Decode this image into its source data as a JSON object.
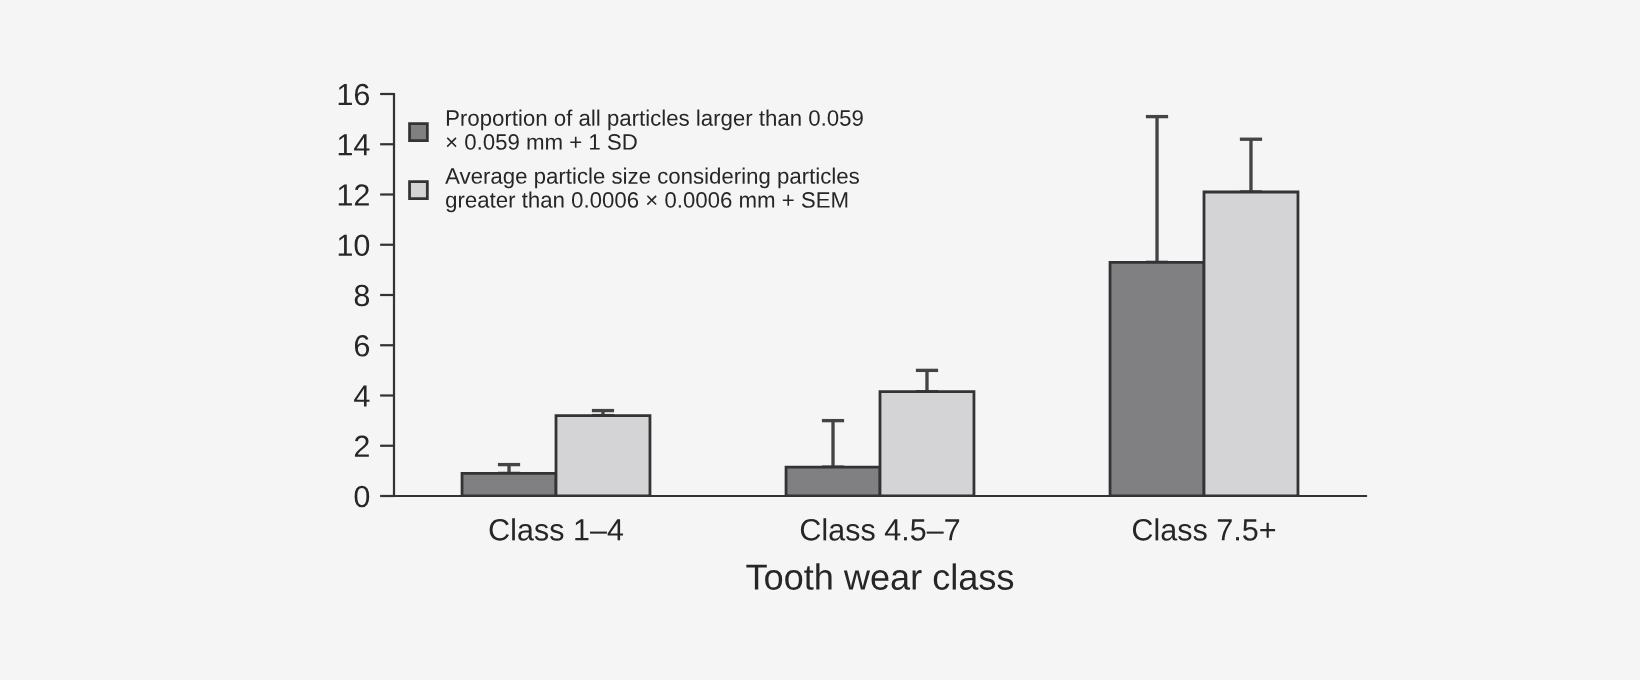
{
  "chart_data": {
    "type": "bar",
    "xlabel": "Tooth wear class",
    "categories": [
      "Class 1–4",
      "Class 4.5–7",
      "Class 7.5+"
    ],
    "series": [
      {
        "name": "Proportion of all particles larger than 0.059\n× 0.059 mm + 1 SD",
        "color": "#808083",
        "values": [
          0.9,
          1.15,
          9.3
        ],
        "errors": [
          [
            0.9,
            1.25
          ],
          [
            1.15,
            3.0
          ],
          [
            9.3,
            15.1
          ]
        ]
      },
      {
        "name": "Average particle size considering particles\ngreater than 0.0006 × 0.0006 mm + SEM",
        "color": "#d4d4d6",
        "values": [
          3.2,
          4.15,
          12.1
        ],
        "errors": [
          [
            3.2,
            3.4
          ],
          [
            4.15,
            5.0
          ],
          [
            12.1,
            14.2
          ]
        ]
      }
    ],
    "ylim": [
      0,
      16
    ],
    "yticks": [
      0,
      2,
      4,
      6,
      8,
      10,
      12,
      14,
      16
    ],
    "grid": false,
    "legend": "top left"
  }
}
